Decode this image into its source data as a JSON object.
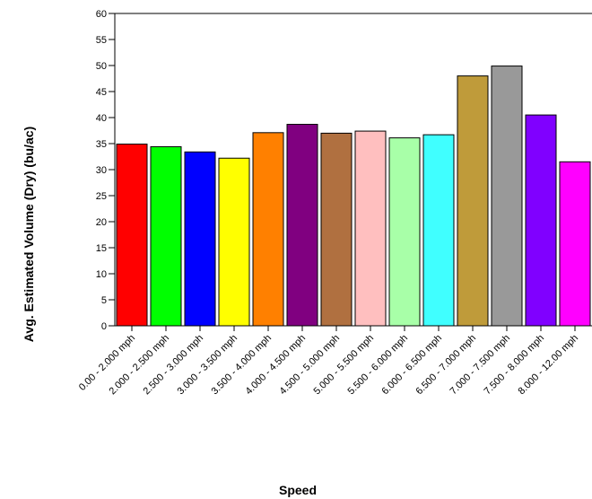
{
  "chart_data": {
    "type": "bar",
    "title": "",
    "xlabel": "Speed",
    "ylabel": "Avg. Estimated Volume (Dry) (bu/ac)",
    "ylim": [
      0,
      60
    ],
    "yticks": [
      0,
      5,
      10,
      15,
      20,
      25,
      30,
      35,
      40,
      45,
      50,
      55,
      60
    ],
    "grid": false,
    "categories": [
      "0.00 - 2.000 mph",
      "2.000 - 2.500 mph",
      "2.500 - 3.000 mph",
      "3.000 - 3.500 mph",
      "3.500 - 4.000 mph",
      "4.000 - 4.500 mph",
      "4.500 - 5.000 mph",
      "5.000 - 5.500 mph",
      "5.500 - 6.000 mph",
      "6.000 - 6.500 mph",
      "6.500 - 7.000 mph",
      "7.000 - 7.500 mph",
      "7.500 - 8.000 mph",
      "8.000 - 12.00 mph"
    ],
    "values": [
      34.9,
      34.4,
      33.4,
      32.2,
      37.1,
      38.7,
      37.0,
      37.4,
      36.1,
      36.7,
      48.0,
      49.9,
      40.5,
      31.5
    ],
    "colors": [
      "#ff0000",
      "#00ff00",
      "#0000ff",
      "#ffff00",
      "#ff8000",
      "#800080",
      "#b07040",
      "#ffbfbf",
      "#a8ffa8",
      "#40ffff",
      "#bf9b3a",
      "#999999",
      "#8000ff",
      "#ff00ff"
    ]
  }
}
